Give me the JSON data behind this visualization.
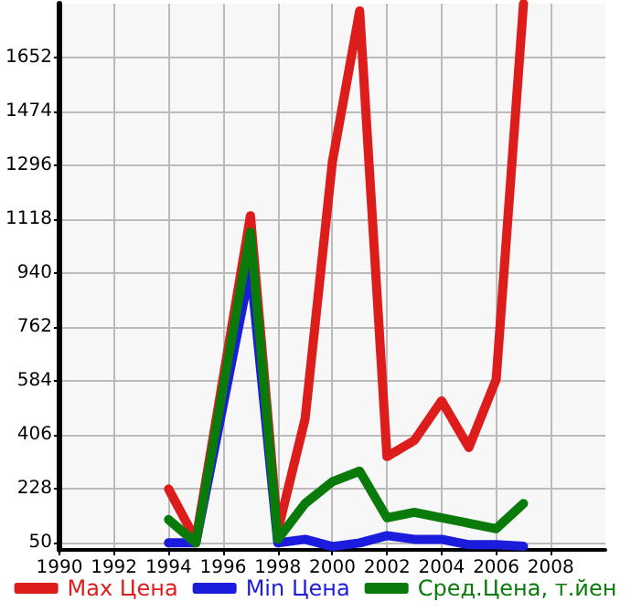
{
  "chart_data": {
    "type": "line",
    "xlim": [
      1990,
      2010
    ],
    "xticks": [
      1990,
      1992,
      1994,
      1996,
      1998,
      2000,
      2002,
      2004,
      2006,
      2008
    ],
    "ylim": [
      27,
      1830
    ],
    "yticks": [
      50,
      228,
      406,
      584,
      762,
      940,
      1118,
      1296,
      1474,
      1652
    ],
    "grid": true,
    "legend": "bottom",
    "marker": "none",
    "line_style": "solid",
    "series": [
      {
        "name": "Max Цена",
        "color": "#dd1c1c",
        "x": [
          1994,
          1995,
          1997,
          1998,
          1999,
          2000,
          2001,
          2002,
          2003,
          2004,
          2005,
          2006,
          2007
        ],
        "values": [
          228,
          60,
          1130,
          90,
          459,
          1308,
          1806,
          335,
          388,
          519,
          365,
          590,
          1830
        ]
      },
      {
        "name": "Min Цена",
        "color": "#1c1cdd",
        "x": [
          1994,
          1995,
          1997,
          1998,
          1999,
          2000,
          2001,
          2002,
          2003,
          2004,
          2005,
          2006,
          2007
        ],
        "values": [
          50,
          50,
          960,
          50,
          62,
          38,
          50,
          74,
          62,
          62,
          44,
          44,
          39
        ]
      },
      {
        "name": "Сред.Цена, т.йен",
        "color": "#0a7a0a",
        "x": [
          1994,
          1995,
          1997,
          1998,
          1999,
          2000,
          2001,
          2002,
          2003,
          2004,
          2005,
          2006,
          2007
        ],
        "values": [
          127,
          50,
          1076,
          62,
          180,
          252,
          287,
          133,
          151,
          133,
          115,
          97,
          180
        ]
      }
    ]
  }
}
